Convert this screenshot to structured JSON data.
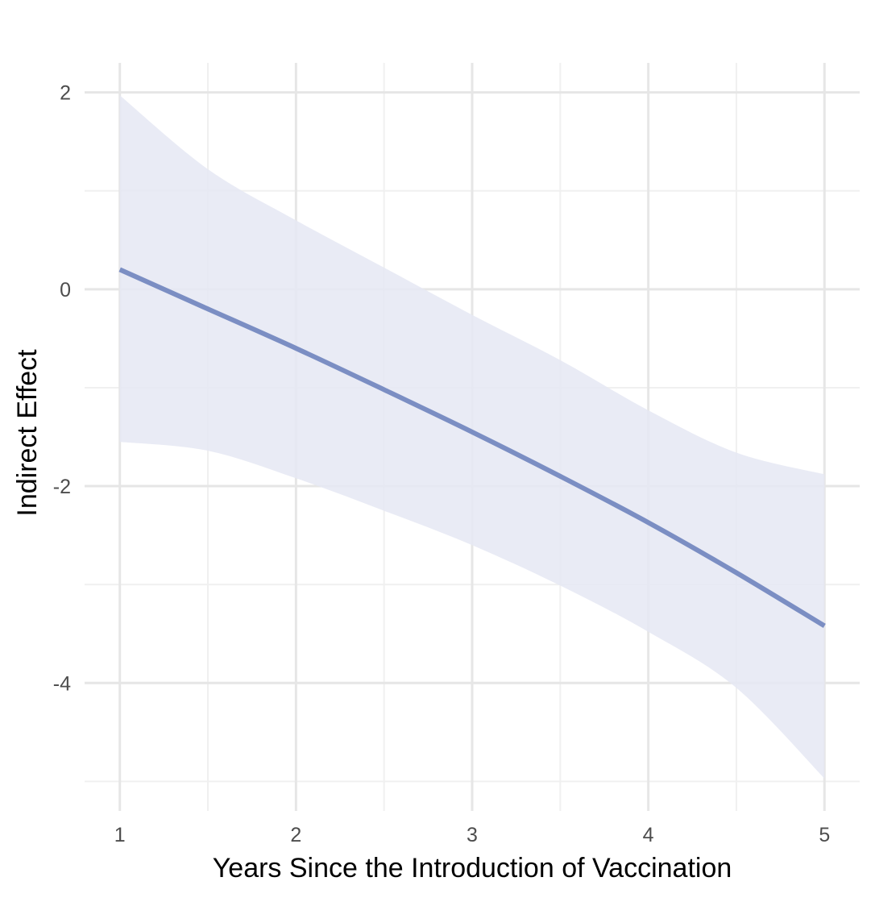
{
  "chart_data": {
    "type": "line",
    "title": "",
    "xlabel": "Years Since the Introduction of Vaccination",
    "ylabel": "Indirect Effect",
    "xlim": [
      0.8,
      5.2
    ],
    "ylim": [
      -5.3,
      2.3
    ],
    "x_ticks": [
      1,
      2,
      3,
      4,
      5
    ],
    "x_tick_labels": [
      "1",
      "2",
      "3",
      "4",
      "5"
    ],
    "y_ticks": [
      2,
      0,
      -2,
      -4
    ],
    "y_tick_labels": [
      "2",
      "0",
      "-2",
      "-4"
    ],
    "grid": true,
    "legend": "none",
    "series": [
      {
        "x": [
          1,
          1.5,
          2,
          2.5,
          3,
          3.5,
          4,
          4.5,
          5
        ],
        "y": [
          0.2,
          -0.2,
          -0.6,
          -1.02,
          -1.45,
          -1.9,
          -2.37,
          -2.88,
          -3.42
        ],
        "band_upper": [
          1.97,
          1.22,
          0.7,
          0.22,
          -0.26,
          -0.72,
          -1.23,
          -1.66,
          -1.88
        ],
        "band_lower": [
          -1.55,
          -1.64,
          -1.92,
          -2.25,
          -2.6,
          -3.01,
          -3.48,
          -4.05,
          -4.97
        ]
      }
    ],
    "colors": {
      "line": "#7b8ec3",
      "band": "#e5e7f3",
      "grid_major": "#e6e6e6",
      "grid_minor": "#f0f0f0"
    }
  }
}
